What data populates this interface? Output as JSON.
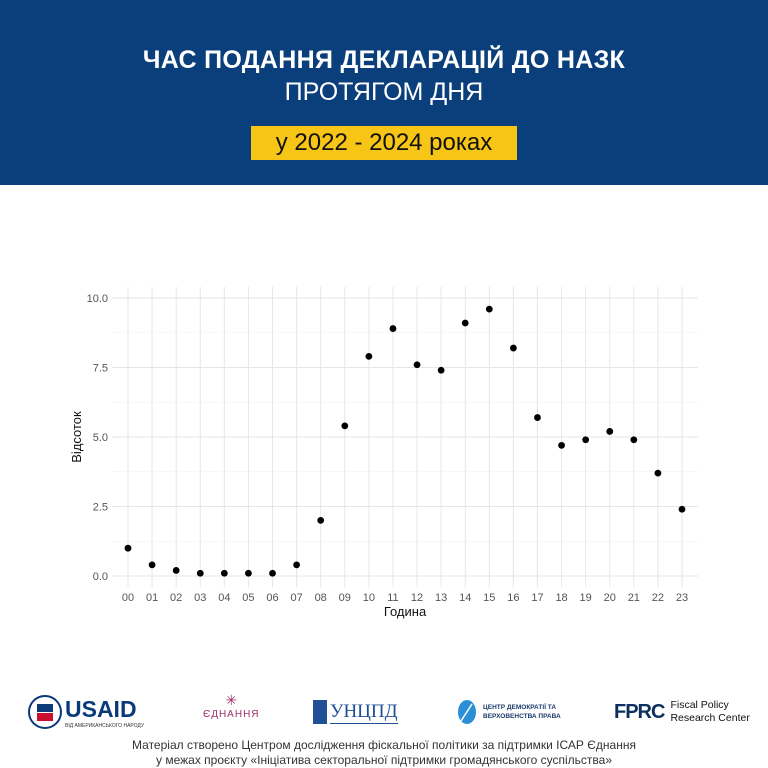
{
  "header": {
    "title_line1": "ЧАС ПОДАННЯ ДЕКЛАРАЦІЙ ДО НАЗК",
    "title_line2": "ПРОТЯГОМ ДНЯ",
    "years_badge": "у 2022 - 2024 роках"
  },
  "colors": {
    "header_bg": "#0b3f7b",
    "badge_bg": "#f6c515",
    "point": "#000000"
  },
  "chart_data": {
    "type": "scatter",
    "title": "",
    "xlabel": "Година",
    "ylabel": "Відсоток",
    "categories": [
      "00",
      "01",
      "02",
      "03",
      "04",
      "05",
      "06",
      "07",
      "08",
      "09",
      "10",
      "11",
      "12",
      "13",
      "14",
      "15",
      "16",
      "17",
      "18",
      "19",
      "20",
      "21",
      "22",
      "23"
    ],
    "values": [
      1.0,
      0.4,
      0.2,
      0.1,
      0.1,
      0.1,
      0.1,
      0.4,
      2.0,
      5.4,
      7.9,
      8.9,
      7.6,
      7.4,
      9.1,
      9.6,
      8.2,
      5.7,
      4.7,
      4.9,
      5.2,
      4.9,
      3.7,
      2.4
    ],
    "ylim": [
      0,
      10
    ],
    "yticks": [
      "0.0",
      "2.5",
      "5.0",
      "7.5",
      "10.0"
    ],
    "ytick_values": [
      0,
      2.5,
      5,
      7.5,
      10
    ],
    "grid": true
  },
  "logos": {
    "usaid": "USAID",
    "usaid_sub": "ВІД АМЕРИКАНСЬКОГО НАРОДУ",
    "ednannia": "ЄДНАННЯ",
    "uncpd": "УНЦПД",
    "cdrl_line1": "ЦЕНТР ДЕМОКРАТІЇ ТА",
    "cdrl_line2": "ВЕРХОВЕНСТВА ПРАВА",
    "fprc_mark": "FPRC",
    "fprc_line1": "Fiscal Policy",
    "fprc_line2": "Research Center"
  },
  "footer": {
    "line1": "Матеріал створено Центром дослідження фіскальної політики за підтримки ІСАР Єднання",
    "line2": "у межах проєкту «Ініціатива секторальної підтримки громадянського суспільства»"
  }
}
